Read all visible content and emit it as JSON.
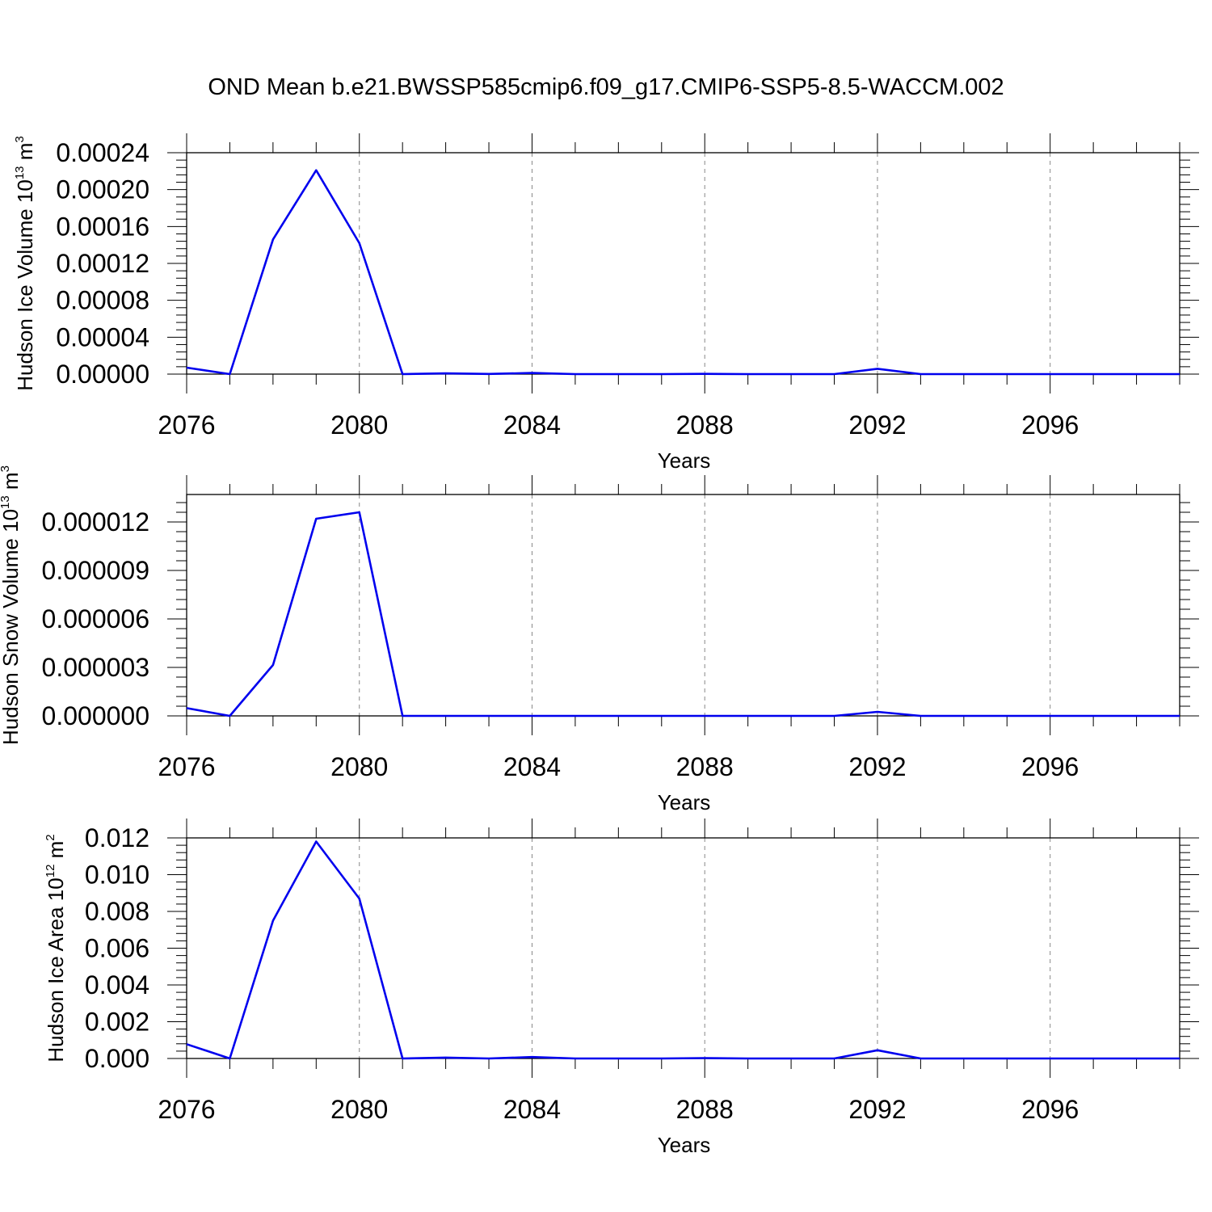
{
  "figure": {
    "title": "OND Mean b.e21.BWSSP585cmip6.f09_g17.CMIP6-SSP5-8.5-WACCM.002"
  },
  "chart_data": [
    {
      "type": "line",
      "xlabel": "Years",
      "ylabel": {
        "main": "Hudson Ice Volume 10",
        "exp": "13",
        "unit": " m",
        "unit_exp": "3"
      },
      "xlim": [
        2076,
        2099
      ],
      "ylim": [
        0,
        0.00024
      ],
      "xticks": [
        2076,
        2080,
        2084,
        2088,
        2092,
        2096
      ],
      "xtick_labels": [
        "2076",
        "2080",
        "2084",
        "2088",
        "2092",
        "2096"
      ],
      "yticks": [
        0,
        4e-05,
        8e-05,
        0.00012,
        0.00016,
        0.0002,
        0.00024
      ],
      "ytick_labels": [
        "0.00000",
        "0.00004",
        "0.00008",
        "0.00012",
        "0.00016",
        "0.00020",
        "0.00024"
      ],
      "grid_x": true,
      "series": [
        {
          "x": [
            2076,
            2077,
            2078,
            2079,
            2080,
            2081,
            2082,
            2083,
            2084,
            2085,
            2086,
            2087,
            2088,
            2089,
            2090,
            2091,
            2092,
            2093,
            2094,
            2095,
            2096,
            2097,
            2098,
            2099
          ],
          "values": [
            7e-06,
            0.0,
            0.000146,
            0.000221,
            0.000142,
            0.0,
            8e-07,
            2e-07,
            1.2e-06,
            0.0,
            0.0,
            0.0,
            3e-07,
            0.0,
            0.0,
            0.0,
            5.8e-06,
            0.0,
            0.0,
            0.0,
            0.0,
            0.0,
            0.0,
            0.0
          ],
          "color": "#0000ee"
        }
      ]
    },
    {
      "type": "line",
      "xlabel": "Years",
      "ylabel": {
        "main": "Hudson Snow Volume 10",
        "exp": "13",
        "unit": " m",
        "unit_exp": "3"
      },
      "xlim": [
        2076,
        2099
      ],
      "ylim": [
        0,
        1.37e-05
      ],
      "xticks": [
        2076,
        2080,
        2084,
        2088,
        2092,
        2096
      ],
      "xtick_labels": [
        "2076",
        "2080",
        "2084",
        "2088",
        "2092",
        "2096"
      ],
      "yticks": [
        0,
        3e-06,
        6e-06,
        9e-06,
        1.2e-05
      ],
      "ytick_labels": [
        "0.000000",
        "0.000003",
        "0.000006",
        "0.000009",
        "0.000012"
      ],
      "grid_x": true,
      "series": [
        {
          "x": [
            2076,
            2077,
            2078,
            2079,
            2080,
            2081,
            2082,
            2083,
            2084,
            2085,
            2086,
            2087,
            2088,
            2089,
            2090,
            2091,
            2092,
            2093,
            2094,
            2095,
            2096,
            2097,
            2098,
            2099
          ],
          "values": [
            4.8e-07,
            0.0,
            3.15e-06,
            1.22e-05,
            1.26e-05,
            0.0,
            0.0,
            0.0,
            0.0,
            0.0,
            0.0,
            0.0,
            0.0,
            0.0,
            0.0,
            0.0,
            2.5e-07,
            0.0,
            0.0,
            0.0,
            0.0,
            0.0,
            0.0,
            0.0
          ],
          "color": "#0000ee"
        }
      ]
    },
    {
      "type": "line",
      "xlabel": "Years",
      "ylabel": {
        "main": "Hudson Ice Area 10",
        "exp": "12",
        "unit": " m",
        "unit_exp": "2"
      },
      "xlim": [
        2076,
        2099
      ],
      "ylim": [
        0,
        0.012
      ],
      "xticks": [
        2076,
        2080,
        2084,
        2088,
        2092,
        2096
      ],
      "xtick_labels": [
        "2076",
        "2080",
        "2084",
        "2088",
        "2092",
        "2096"
      ],
      "yticks": [
        0,
        0.002,
        0.004,
        0.006,
        0.008,
        0.01,
        0.012
      ],
      "ytick_labels": [
        "0.000",
        "0.002",
        "0.004",
        "0.006",
        "0.008",
        "0.010",
        "0.012"
      ],
      "grid_x": true,
      "series": [
        {
          "x": [
            2076,
            2077,
            2078,
            2079,
            2080,
            2081,
            2082,
            2083,
            2084,
            2085,
            2086,
            2087,
            2088,
            2089,
            2090,
            2091,
            2092,
            2093,
            2094,
            2095,
            2096,
            2097,
            2098,
            2099
          ],
          "values": [
            0.00078,
            0.0,
            0.0075,
            0.0118,
            0.0087,
            0.0,
            5e-05,
            0.0,
            8e-05,
            0.0,
            0.0,
            0.0,
            2e-05,
            0.0,
            0.0,
            0.0,
            0.00045,
            0.0,
            0.0,
            0.0,
            0.0,
            0.0,
            0.0,
            0.0
          ],
          "color": "#0000ee"
        }
      ]
    }
  ]
}
